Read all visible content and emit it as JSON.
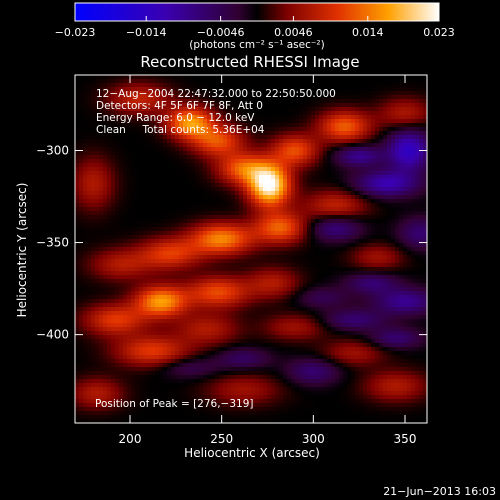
{
  "chart_data": {
    "type": "heatmap",
    "title": "Reconstructed RHESSI Image",
    "xlabel": "Heliocentric X (arcsec)",
    "ylabel": "Heliocentric Y (arcsec)",
    "xlim": [
      170,
      362
    ],
    "ylim": [
      -448,
      -259
    ],
    "x_ticks": [
      200,
      250,
      300,
      350
    ],
    "y_ticks": [
      -300,
      -350,
      -400
    ],
    "colorbar": {
      "range": [
        -0.023,
        0.023
      ],
      "tick_values": [
        -0.023,
        -0.014,
        -0.0046,
        0.0046,
        0.014,
        0.023
      ],
      "tick_labels": [
        "−0.023",
        "−0.014",
        "−0.0046",
        "0.0046",
        "0.014",
        "0.023"
      ],
      "units": "(photons cm⁻² s⁻¹ asec⁻²)"
    },
    "annotations": [
      "12−Aug−2004 22:47:32.000 to 22:50:50.000",
      "Detectors: 4F 5F 6F 7F 8F, Att 0",
      "Energy Range: 6.0 − 12.0 keV",
      "Clean     Total counts: 5.36E+04"
    ],
    "peak_label": "Position of Peak = [276,−319]",
    "peak": [
      276,
      -319
    ],
    "blobs": [
      {
        "x": 276,
        "y": -319,
        "sx": 8,
        "sy": 8,
        "a": 1.0
      },
      {
        "x": 262,
        "y": -310,
        "sx": 10,
        "sy": 6,
        "a": 0.55
      },
      {
        "x": 290,
        "y": -300,
        "sx": 9,
        "sy": 6,
        "a": 0.5
      },
      {
        "x": 317,
        "y": -287,
        "sx": 10,
        "sy": 6,
        "a": 0.55
      },
      {
        "x": 350,
        "y": -280,
        "sx": 10,
        "sy": 6,
        "a": 0.3
      },
      {
        "x": 233,
        "y": -285,
        "sx": 9,
        "sy": 6,
        "a": 0.7
      },
      {
        "x": 248,
        "y": -295,
        "sx": 10,
        "sy": 6,
        "a": 0.5
      },
      {
        "x": 205,
        "y": -272,
        "sx": 12,
        "sy": 6,
        "a": 0.35
      },
      {
        "x": 250,
        "y": -348,
        "sx": 12,
        "sy": 6,
        "a": 0.65
      },
      {
        "x": 282,
        "y": -342,
        "sx": 10,
        "sy": 6,
        "a": 0.55
      },
      {
        "x": 312,
        "y": -330,
        "sx": 12,
        "sy": 6,
        "a": 0.35
      },
      {
        "x": 222,
        "y": -356,
        "sx": 12,
        "sy": 6,
        "a": 0.45
      },
      {
        "x": 195,
        "y": -362,
        "sx": 12,
        "sy": 6,
        "a": 0.3
      },
      {
        "x": 217,
        "y": -382,
        "sx": 10,
        "sy": 6,
        "a": 0.7
      },
      {
        "x": 248,
        "y": -377,
        "sx": 12,
        "sy": 6,
        "a": 0.5
      },
      {
        "x": 278,
        "y": -372,
        "sx": 10,
        "sy": 6,
        "a": 0.3
      },
      {
        "x": 192,
        "y": -392,
        "sx": 12,
        "sy": 6,
        "a": 0.45
      },
      {
        "x": 242,
        "y": -397,
        "sx": 12,
        "sy": 6,
        "a": 0.3
      },
      {
        "x": 212,
        "y": -409,
        "sx": 14,
        "sy": 6,
        "a": 0.45
      },
      {
        "x": 290,
        "y": -396,
        "sx": 12,
        "sy": 5,
        "a": 0.25
      },
      {
        "x": 322,
        "y": -410,
        "sx": 12,
        "sy": 5,
        "a": 0.25
      },
      {
        "x": 345,
        "y": -428,
        "sx": 12,
        "sy": 6,
        "a": 0.3
      },
      {
        "x": 262,
        "y": -430,
        "sx": 14,
        "sy": 6,
        "a": 0.25
      },
      {
        "x": 182,
        "y": -432,
        "sx": 10,
        "sy": 6,
        "a": 0.3
      },
      {
        "x": 335,
        "y": -358,
        "sx": 10,
        "sy": 5,
        "a": 0.25
      },
      {
        "x": 180,
        "y": -318,
        "sx": 8,
        "sy": 10,
        "a": 0.3
      },
      {
        "x": 352,
        "y": -300,
        "sx": 8,
        "sy": 8,
        "a": -0.6
      },
      {
        "x": 340,
        "y": -318,
        "sx": 12,
        "sy": 5,
        "a": -0.5
      },
      {
        "x": 325,
        "y": -303,
        "sx": 9,
        "sy": 4,
        "a": -0.4
      },
      {
        "x": 312,
        "y": -342,
        "sx": 10,
        "sy": 5,
        "a": -0.35
      },
      {
        "x": 350,
        "y": -382,
        "sx": 12,
        "sy": 5,
        "a": -0.4
      },
      {
        "x": 332,
        "y": -372,
        "sx": 10,
        "sy": 4,
        "a": -0.3
      },
      {
        "x": 322,
        "y": -392,
        "sx": 12,
        "sy": 4,
        "a": -0.3
      },
      {
        "x": 300,
        "y": -420,
        "sx": 10,
        "sy": 5,
        "a": -0.3
      },
      {
        "x": 345,
        "y": -402,
        "sx": 10,
        "sy": 4,
        "a": -0.3
      },
      {
        "x": 305,
        "y": -380,
        "sx": 10,
        "sy": 4,
        "a": -0.2
      },
      {
        "x": 262,
        "y": -413,
        "sx": 10,
        "sy": 4,
        "a": -0.25
      },
      {
        "x": 232,
        "y": -418,
        "sx": 12,
        "sy": 4,
        "a": -0.2
      },
      {
        "x": 358,
        "y": -345,
        "sx": 8,
        "sy": 6,
        "a": -0.3
      }
    ]
  },
  "footer": {
    "timestamp": "21−Jun−2013 16:03"
  }
}
